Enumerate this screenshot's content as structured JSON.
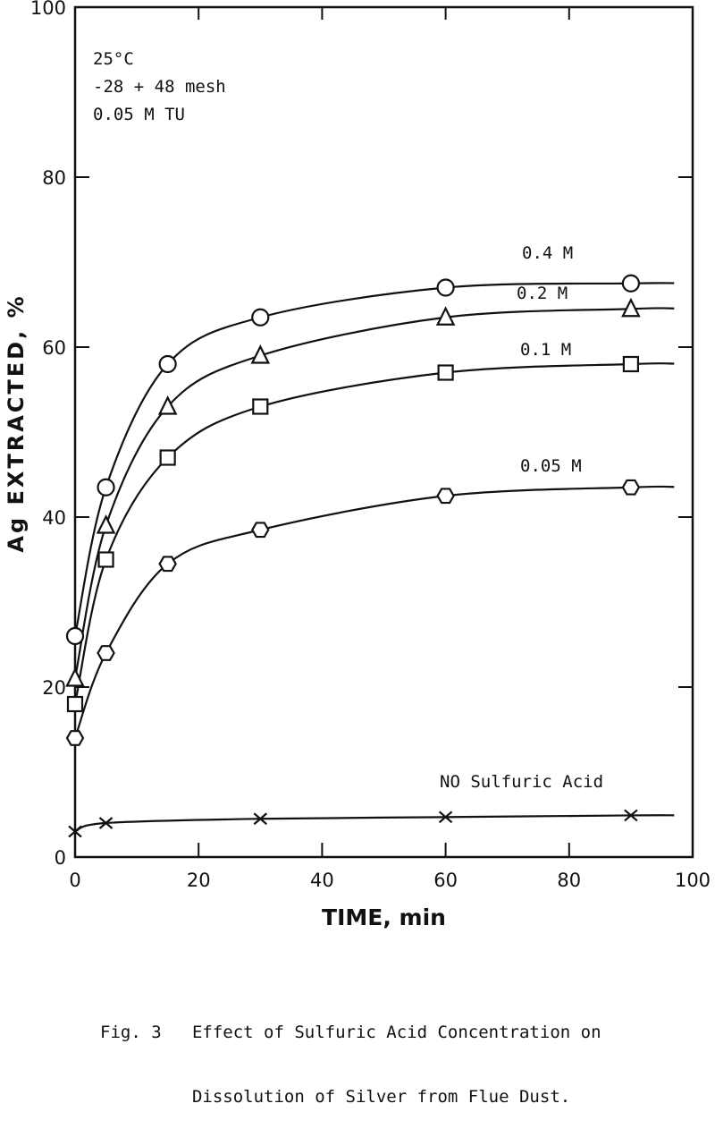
{
  "chart_data": {
    "type": "line",
    "xlabel": "TIME, min",
    "ylabel": "Ag EXTRACTED, %",
    "xlim": [
      0,
      100
    ],
    "ylim": [
      0,
      100
    ],
    "x_ticks": [
      "0",
      "20",
      "40",
      "60",
      "80",
      "100"
    ],
    "y_ticks": [
      "0",
      "20",
      "40",
      "60",
      "80",
      "100"
    ],
    "conditions": [
      "25°C",
      "-28 + 48 mesh",
      "0.05 M TU"
    ],
    "grid": false,
    "series": [
      {
        "name": "0.4 M",
        "marker": "circle",
        "x": [
          0,
          5,
          15,
          30,
          60,
          90
        ],
        "y": [
          26,
          43.5,
          58,
          63.5,
          67,
          67.5
        ]
      },
      {
        "name": "0.2 M",
        "marker": "triangle",
        "x": [
          0,
          5,
          15,
          30,
          60,
          90
        ],
        "y": [
          21,
          39,
          53,
          59,
          63.5,
          64.5
        ]
      },
      {
        "name": "0.1 M",
        "marker": "square",
        "x": [
          0,
          5,
          15,
          30,
          60,
          90
        ],
        "y": [
          18,
          35,
          47,
          53,
          57,
          58
        ]
      },
      {
        "name": "0.05 M",
        "marker": "hexagon",
        "x": [
          0,
          5,
          15,
          30,
          60,
          90
        ],
        "y": [
          14,
          24,
          34.5,
          38.5,
          42.5,
          43.5
        ]
      },
      {
        "name": "NO Sulfuric Acid",
        "marker": "x",
        "x": [
          0,
          5,
          30,
          60,
          90
        ],
        "y": [
          3,
          4,
          4.5,
          4.7,
          4.9
        ]
      }
    ]
  },
  "caption": {
    "line1": "Fig. 3   Effect of Sulfuric Acid Concentration on",
    "line2": "         Dissolution of Silver from Flue Dust."
  }
}
